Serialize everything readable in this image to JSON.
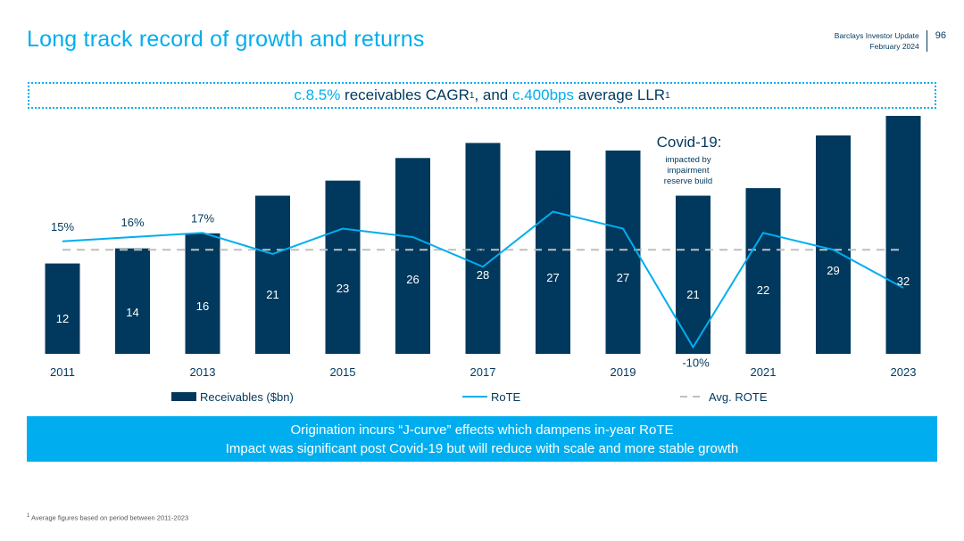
{
  "header": {
    "title": "Long track record of growth and returns",
    "meta_line1": "Barclays Investor Update",
    "meta_line2": "February 2024",
    "page_number": "96"
  },
  "callout": {
    "part1_hl": "c.8.5%",
    "part2": " receivables CAGR",
    "sup1": "1",
    "part3": ", and ",
    "part4_hl": "c.400bps",
    "part5": " average LLR",
    "sup2": "1"
  },
  "chart_data": {
    "type": "bar",
    "title": "",
    "categories": [
      "2011",
      "2012",
      "2013",
      "2014",
      "2015",
      "2016",
      "2017",
      "2018",
      "2019",
      "2020",
      "2021",
      "2022",
      "2023"
    ],
    "tick_labels": [
      "2011",
      "",
      "2013",
      "",
      "2015",
      "",
      "2017",
      "",
      "2019",
      "",
      "2021",
      "",
      "2023"
    ],
    "series": [
      {
        "name": "Receivables ($bn)",
        "type": "bar",
        "values": [
          12,
          14,
          16,
          21,
          23,
          26,
          28,
          27,
          27,
          21,
          22,
          29,
          32
        ],
        "labels": [
          "12",
          "14",
          "16",
          "21",
          "23",
          "26",
          "28",
          "27",
          "27",
          "21",
          "22",
          "29",
          "32"
        ],
        "color": "#00395D"
      },
      {
        "name": "RoTE",
        "type": "line",
        "values": [
          15,
          16,
          17,
          12,
          18,
          16,
          9,
          22,
          18,
          -10,
          17,
          13,
          4
        ],
        "labels": [
          "15%",
          "16%",
          "17%",
          "12%",
          "18%",
          "16%",
          "9%",
          "22%",
          "18%",
          "-10%",
          "17%",
          "13%",
          "4%"
        ],
        "color": "#00AEEF"
      },
      {
        "name": "Avg. ROTE",
        "type": "line",
        "style": "dashed",
        "value": 13,
        "color": "#BFBFBF"
      }
    ],
    "bar_ylim": [
      0,
      35
    ],
    "line_ylim": [
      -12,
      24
    ],
    "annotation": {
      "title": "Covid-19:",
      "line1": "impacted by",
      "line2": "impairment",
      "line3": "reserve build"
    },
    "legend_placement": "bottom"
  },
  "banner": {
    "line1": "Origination incurs “J-curve” effects which dampens in-year RoTE",
    "line2": "Impact was significant post Covid-19 but will reduce with scale and more stable growth"
  },
  "footnote": {
    "sup": "1",
    "text": " Average figures based on period between 2011-2023"
  }
}
